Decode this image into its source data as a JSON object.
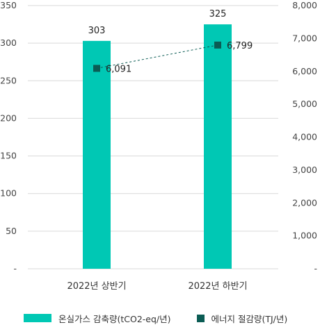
{
  "chart_data": {
    "type": "bar",
    "categories": [
      "2022년 상반기",
      "2022년 하반기"
    ],
    "series": [
      {
        "name": "온실가스 감축량(tCO2-eq/년)",
        "type": "bar",
        "axis": "left",
        "values": [
          303,
          325
        ],
        "labels": [
          "303",
          "325"
        ],
        "color": "#00c8b4"
      },
      {
        "name": "에너지 절감량(TJ/년)",
        "type": "line",
        "axis": "right",
        "values": [
          6091,
          6799
        ],
        "labels": [
          "6,091",
          "6,799"
        ],
        "color": "#0b5c54",
        "line_style": "dashed"
      }
    ],
    "y_left": {
      "ylim": [
        0,
        350
      ],
      "ticks": [
        0,
        50,
        100,
        150,
        200,
        250,
        300,
        350
      ],
      "tick_labels": [
        "-",
        "50",
        "100",
        "150",
        "200",
        "250",
        "300",
        "350"
      ]
    },
    "y_right": {
      "ylim": [
        0,
        8000
      ],
      "ticks": [
        0,
        1000,
        2000,
        3000,
        4000,
        5000,
        6000,
        7000,
        8000
      ],
      "tick_labels": [
        "-",
        "1,000",
        "2,000",
        "3,000",
        "4,000",
        "5,000",
        "6,000",
        "7,000",
        "8,000"
      ]
    },
    "grid": true,
    "legend_position": "bottom"
  }
}
